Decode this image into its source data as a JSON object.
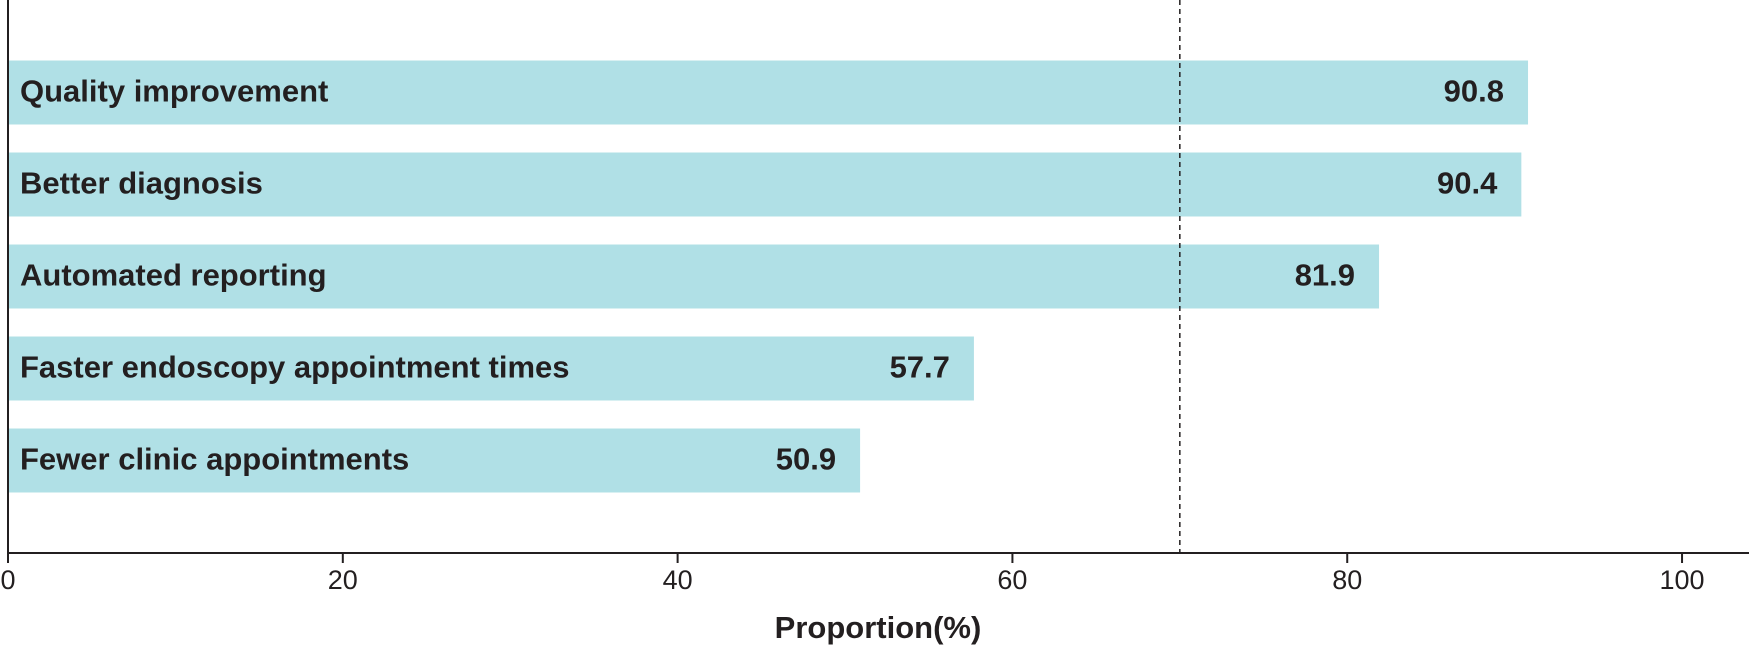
{
  "chart_data": {
    "type": "barh",
    "categories": [
      "Quality improvement",
      "Better diagnosis",
      "Automated reporting",
      "Faster endoscopy appointment times",
      "Fewer clinic appointments"
    ],
    "values": [
      90.8,
      90.4,
      81.9,
      57.7,
      50.9
    ],
    "color": "#b0e0e6",
    "xlabel": "Proportion(%)",
    "xlim": [
      0,
      104
    ],
    "xticks": [
      0,
      20,
      40,
      60,
      80,
      100
    ],
    "reference_line": 70
  }
}
